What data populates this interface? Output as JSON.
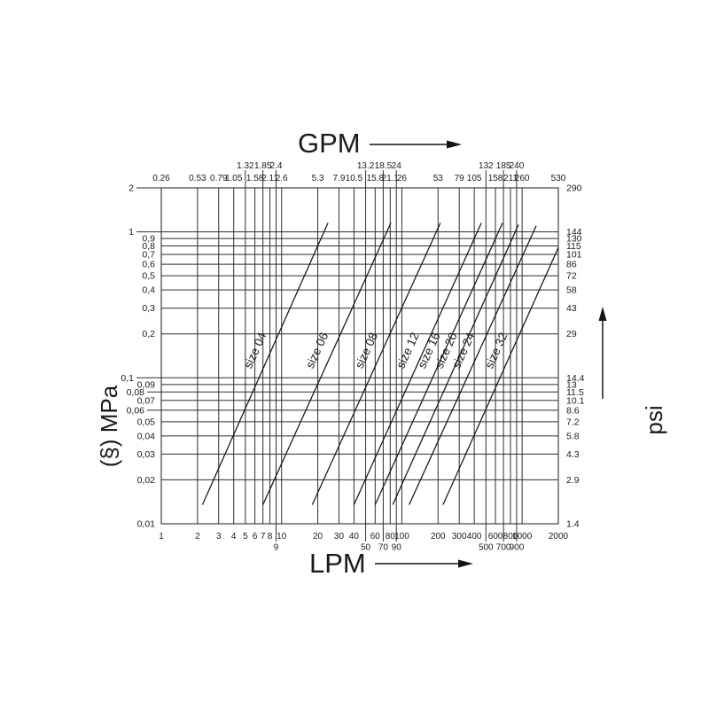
{
  "chart_data": {
    "type": "line",
    "scale": {
      "x": "log",
      "y": "log"
    },
    "grid": true,
    "x_range_lpm": [
      1,
      2000
    ],
    "y_range_mpa": [
      0.01,
      2
    ],
    "axes": {
      "top": {
        "title": "GPM"
      },
      "bottom": {
        "title": "LPM"
      },
      "left": {
        "title": "(§) MPa"
      },
      "right": {
        "title": "psi"
      }
    },
    "colors": {
      "ink": "#1a1a1a",
      "line": "#151515"
    },
    "x_ticks": [
      {
        "lpm": 1,
        "lpm_label": "1",
        "gpm_label": "0.26"
      },
      {
        "lpm": 2,
        "lpm_label": "2",
        "gpm_label": "0.53"
      },
      {
        "lpm": 3,
        "lpm_label": "3",
        "gpm_label": "0.79"
      },
      {
        "lpm": 4,
        "lpm_label": "4",
        "gpm_label": "1.05"
      },
      {
        "lpm": 5,
        "lpm_label": "5",
        "gpm_label": "1.32",
        "gpm_stagger": true
      },
      {
        "lpm": 6,
        "lpm_label": "6",
        "gpm_label": "1.58"
      },
      {
        "lpm": 7,
        "lpm_label": "7",
        "gpm_label": "1.85",
        "gpm_stagger": true
      },
      {
        "lpm": 8,
        "lpm_label": "8",
        "gpm_label": "2.11"
      },
      {
        "lpm": 9,
        "lpm_label": "9",
        "gpm_label": "2.4",
        "gpm_stagger": true,
        "lpm_stagger": true
      },
      {
        "lpm": 10,
        "lpm_label": "10",
        "gpm_label": "2.6"
      },
      {
        "lpm": 20,
        "lpm_label": "20",
        "gpm_label": "5.3"
      },
      {
        "lpm": 30,
        "lpm_label": "30",
        "gpm_label": "7.9"
      },
      {
        "lpm": 40,
        "lpm_label": "40",
        "gpm_label": "10.5"
      },
      {
        "lpm": 50,
        "lpm_label": "50",
        "gpm_label": "13.2",
        "gpm_stagger": true,
        "lpm_stagger": true
      },
      {
        "lpm": 60,
        "lpm_label": "60",
        "gpm_label": "15.8"
      },
      {
        "lpm": 70,
        "lpm_label": "70",
        "gpm_label": "18.5",
        "gpm_stagger": true,
        "lpm_stagger": true
      },
      {
        "lpm": 80,
        "lpm_label": "80",
        "gpm_label": "21.1"
      },
      {
        "lpm": 90,
        "lpm_label": "90",
        "gpm_label": "24",
        "gpm_stagger": true,
        "lpm_stagger": true
      },
      {
        "lpm": 100,
        "lpm_label": "100",
        "gpm_label": "26"
      },
      {
        "lpm": 200,
        "lpm_label": "200",
        "gpm_label": "53"
      },
      {
        "lpm": 300,
        "lpm_label": "300",
        "gpm_label": "79"
      },
      {
        "lpm": 400,
        "lpm_label": "400",
        "gpm_label": "105"
      },
      {
        "lpm": 500,
        "lpm_label": "500",
        "gpm_label": "132",
        "gpm_stagger": true,
        "lpm_stagger": true
      },
      {
        "lpm": 600,
        "lpm_label": "600",
        "gpm_label": "158"
      },
      {
        "lpm": 700,
        "lpm_label": "700",
        "gpm_label": "185",
        "gpm_stagger": true,
        "lpm_stagger": true
      },
      {
        "lpm": 800,
        "lpm_label": "800",
        "gpm_label": "211"
      },
      {
        "lpm": 900,
        "lpm_label": "900",
        "gpm_label": "240",
        "gpm_stagger": true,
        "lpm_stagger": true
      },
      {
        "lpm": 1000,
        "lpm_label": "1000",
        "gpm_label": "260"
      },
      {
        "lpm": 2000,
        "lpm_label": "2000",
        "gpm_label": "530"
      }
    ],
    "y_ticks": [
      {
        "mpa": 2,
        "mpa_label": "2",
        "psi_label": "290",
        "out": 1
      },
      {
        "mpa": 1,
        "mpa_label": "1",
        "psi_label": "144",
        "out": 1
      },
      {
        "mpa": 0.9,
        "mpa_label": "0,9",
        "psi_label": "130",
        "out": 0
      },
      {
        "mpa": 0.8,
        "mpa_label": "0,8",
        "psi_label": "115",
        "out": 0
      },
      {
        "mpa": 0.7,
        "mpa_label": "0,7",
        "psi_label": "101",
        "out": 0
      },
      {
        "mpa": 0.6,
        "mpa_label": "0,6",
        "psi_label": "86",
        "out": 0
      },
      {
        "mpa": 0.5,
        "mpa_label": "0,5",
        "psi_label": "72",
        "out": 0
      },
      {
        "mpa": 0.4,
        "mpa_label": "0,4",
        "psi_label": "58",
        "out": 0
      },
      {
        "mpa": 0.3,
        "mpa_label": "0,3",
        "psi_label": "43",
        "out": 0
      },
      {
        "mpa": 0.2,
        "mpa_label": "0,2",
        "psi_label": "29",
        "out": 0
      },
      {
        "mpa": 0.1,
        "mpa_label": "0,1",
        "psi_label": "14.4",
        "out": 1
      },
      {
        "mpa": 0.09,
        "mpa_label": "0,09",
        "psi_label": "13",
        "out": 0
      },
      {
        "mpa": 0.08,
        "mpa_label": "0,08",
        "psi_label": "11.5",
        "out": 2
      },
      {
        "mpa": 0.07,
        "mpa_label": "0,07",
        "psi_label": "10.1",
        "out": 0
      },
      {
        "mpa": 0.06,
        "mpa_label": "0,06",
        "psi_label": "8.6",
        "out": 2
      },
      {
        "mpa": 0.05,
        "mpa_label": "0,05",
        "psi_label": "7.2",
        "out": 0
      },
      {
        "mpa": 0.04,
        "mpa_label": "0,04",
        "psi_label": "5.8",
        "out": 0
      },
      {
        "mpa": 0.03,
        "mpa_label": "0,03",
        "psi_label": "4.3",
        "out": 0
      },
      {
        "mpa": 0.02,
        "mpa_label": "0,02",
        "psi_label": "2.9",
        "out": 0
      },
      {
        "mpa": 0.01,
        "mpa_label": "0,01",
        "psi_label": "1.4",
        "out": 0
      }
    ],
    "series": [
      {
        "name": "size 04",
        "lpm_mpa": [
          [
            2.2,
            0.0135
          ],
          [
            24.3,
            1.15
          ]
        ]
      },
      {
        "name": "size 06",
        "lpm_mpa": [
          [
            7,
            0.0135
          ],
          [
            81,
            1.15
          ]
        ]
      },
      {
        "name": "size 08",
        "lpm_mpa": [
          [
            18,
            0.0135
          ],
          [
            209,
            1.15
          ]
        ]
      },
      {
        "name": "size 12",
        "lpm_mpa": [
          [
            40,
            0.0135
          ],
          [
            458,
            1.15
          ]
        ]
      },
      {
        "name": "size 16",
        "lpm_mpa": [
          [
            60,
            0.0135
          ],
          [
            687,
            1.15
          ]
        ]
      },
      {
        "name": "size 20",
        "lpm_mpa": [
          [
            84,
            0.0135
          ],
          [
            933,
            1.12
          ]
        ]
      },
      {
        "name": "size 24",
        "lpm_mpa": [
          [
            115,
            0.0135
          ],
          [
            1310,
            1.1
          ]
        ]
      },
      {
        "name": "size 32",
        "lpm_mpa": [
          [
            220,
            0.0135
          ],
          [
            2000,
            0.78
          ]
        ]
      }
    ],
    "series_label_anchor_mpa": 0.14
  }
}
